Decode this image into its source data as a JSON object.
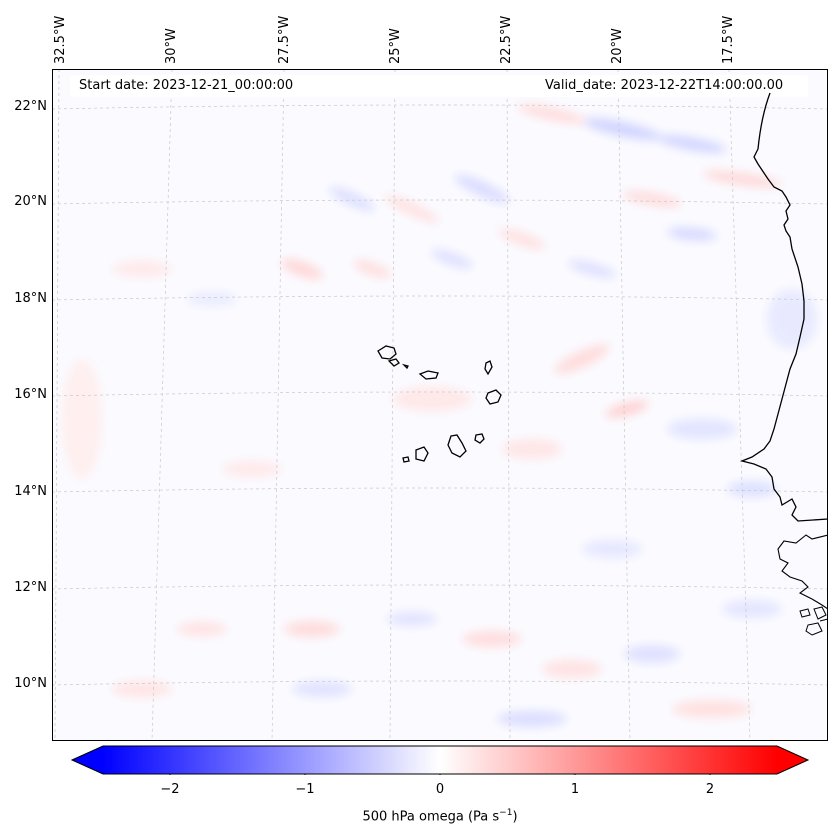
{
  "map": {
    "start_date": "Start date: 2023-12-21_00:00:00",
    "valid_date": "Valid_date: 2023-12-22T14:00:00.00",
    "longitude_labels": [
      "32.5°W",
      "30°W",
      "27.5°W",
      "25°W",
      "22.5°W",
      "20°W",
      "17.5°W"
    ],
    "latitude_labels": [
      "22°N",
      "20°N",
      "18°N",
      "16°N",
      "14°N",
      "12°N",
      "10°N"
    ],
    "field": "500 hPa omega",
    "colormap": {
      "negative": "#0000ff",
      "zero": "#ffffff",
      "positive": "#ff0000"
    },
    "coastline_color": "#000000",
    "gridline_color": "#bbbbbb"
  },
  "colorbar": {
    "tick_labels": [
      "−2",
      "−1",
      "0",
      "1",
      "2"
    ],
    "label_prefix": "500 hPa omega (Pa s",
    "label_exponent": "−1",
    "label_suffix": ")",
    "range": [
      -2.6,
      2.6
    ]
  }
}
